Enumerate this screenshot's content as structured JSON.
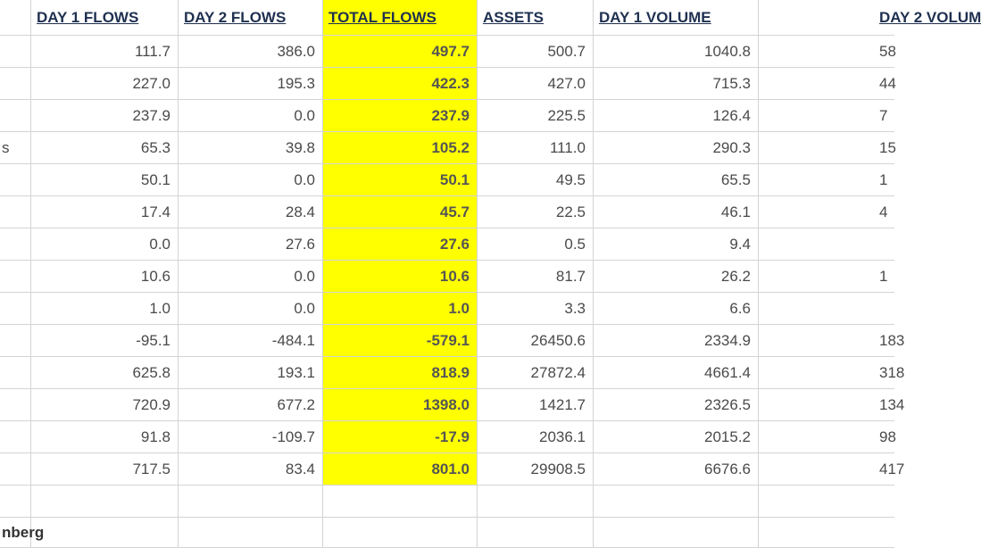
{
  "header": [
    "DAY 1 FLOWS",
    "DAY 2 FLOWS",
    "TOTAL FLOWS",
    "ASSETS",
    "DAY 1 VOLUME",
    "DAY 2 VOLUM"
  ],
  "rows": [
    [
      null,
      "111.7",
      "386.0",
      "497.7",
      "500.7",
      "1040.8",
      "58"
    ],
    [
      null,
      "227.0",
      "195.3",
      "422.3",
      "427.0",
      "715.3",
      "44"
    ],
    [
      null,
      "237.9",
      "0.0",
      "237.9",
      "225.5",
      "126.4",
      "7"
    ],
    [
      "s",
      "65.3",
      "39.8",
      "105.2",
      "111.0",
      "290.3",
      "15"
    ],
    [
      null,
      "50.1",
      "0.0",
      "50.1",
      "49.5",
      "65.5",
      "1"
    ],
    [
      null,
      "17.4",
      "28.4",
      "45.7",
      "22.5",
      "46.1",
      "4"
    ],
    [
      null,
      "0.0",
      "27.6",
      "27.6",
      "0.5",
      "9.4",
      null
    ],
    [
      null,
      "10.6",
      "0.0",
      "10.6",
      "81.7",
      "26.2",
      "1"
    ],
    [
      null,
      "1.0",
      "0.0",
      "1.0",
      "3.3",
      "6.6",
      null
    ],
    [
      null,
      "-95.1",
      "-484.1",
      "-579.1",
      "26450.6",
      "2334.9",
      "183"
    ],
    [
      null,
      "625.8",
      "193.1",
      "818.9",
      "27872.4",
      "4661.4",
      "318"
    ],
    [
      null,
      "720.9",
      "677.2",
      "1398.0",
      "1421.7",
      "2326.5",
      "134"
    ],
    [
      null,
      "91.8",
      "-109.7",
      "-17.9",
      "2036.1",
      "2015.2",
      "98"
    ],
    [
      null,
      "717.5",
      "83.4",
      "801.0",
      "29908.5",
      "6676.6",
      "417"
    ]
  ],
  "footer": "nberg"
}
